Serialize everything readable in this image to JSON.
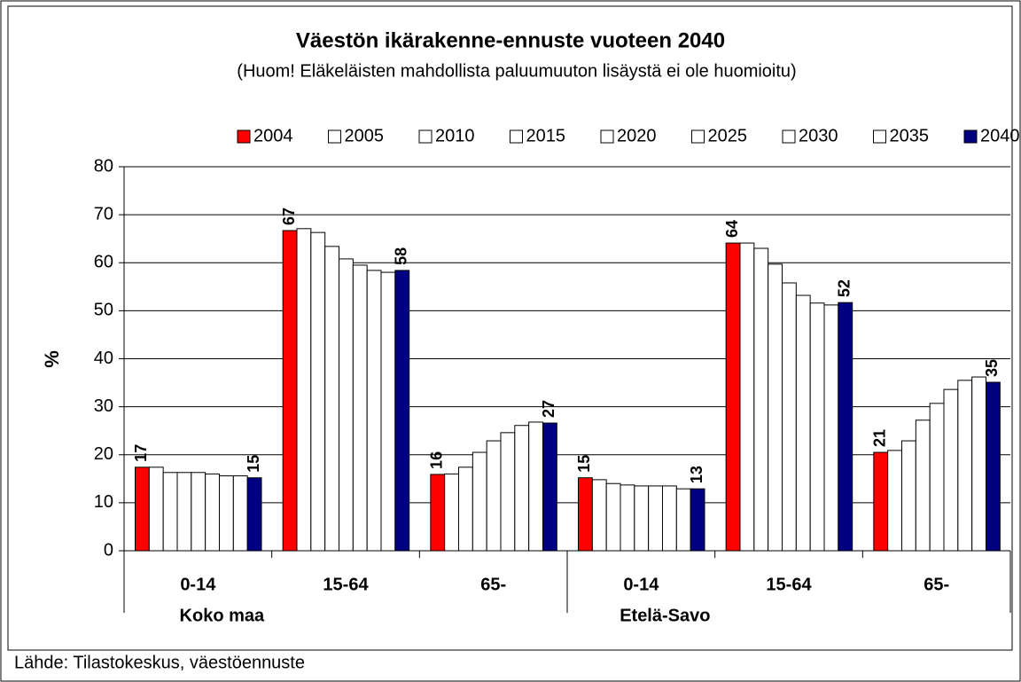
{
  "chart_data": {
    "type": "bar",
    "title": "Väestön ikärakenne-ennuste vuoteen 2040",
    "subtitle": "(Huom! Eläkeläisten mahdollista paluumuuton lisäystä ei ole huomioitu)",
    "y_label": "%",
    "source": "Lähde: Tilastokeskus, väestöennuste",
    "categories": [
      "0-14",
      "15-64",
      "65-",
      "0-14",
      "15-64",
      "65-"
    ],
    "group_labels": [
      "Koko maa",
      "Etelä-Savo"
    ],
    "ylim": [
      0,
      80
    ],
    "yticks": [
      0,
      10,
      20,
      30,
      40,
      50,
      60,
      70,
      80
    ],
    "grid": true,
    "legend": "top",
    "series": [
      {
        "name": "2004",
        "color": "#ff0000",
        "values": [
          17.4,
          66.7,
          15.9,
          15.2,
          64.1,
          20.5
        ],
        "value_labels": [
          "17",
          "67",
          "16",
          "15",
          "64",
          "21"
        ]
      },
      {
        "name": "2005",
        "color": "#ffffff",
        "values": [
          17.4,
          67.1,
          16.0,
          14.8,
          64.1,
          20.9
        ]
      },
      {
        "name": "2010",
        "color": "#ffffff",
        "values": [
          16.3,
          66.3,
          17.4,
          14.0,
          63.0,
          22.9
        ]
      },
      {
        "name": "2015",
        "color": "#ffffff",
        "values": [
          16.3,
          63.4,
          20.5,
          13.7,
          59.7,
          27.2
        ]
      },
      {
        "name": "2020",
        "color": "#ffffff",
        "values": [
          16.3,
          60.8,
          22.9,
          13.5,
          55.8,
          30.7
        ]
      },
      {
        "name": "2025",
        "color": "#ffffff",
        "values": [
          16.0,
          59.5,
          24.6,
          13.5,
          53.2,
          33.6
        ]
      },
      {
        "name": "2030",
        "color": "#ffffff",
        "values": [
          15.6,
          58.4,
          26.1,
          13.5,
          51.6,
          35.5
        ]
      },
      {
        "name": "2035",
        "color": "#ffffff",
        "values": [
          15.6,
          58.0,
          26.8,
          12.9,
          51.2,
          36.2
        ]
      },
      {
        "name": "2040",
        "color": "#000080",
        "values": [
          15.2,
          58.4,
          26.6,
          12.9,
          51.7,
          35.1
        ],
        "value_labels": [
          "15",
          "58",
          "27",
          "13",
          "52",
          "35"
        ]
      }
    ]
  }
}
